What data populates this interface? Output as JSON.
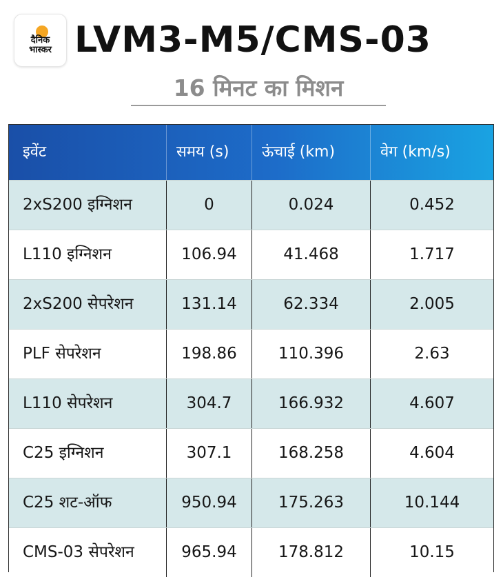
{
  "logo": {
    "line1": "दैनिक",
    "line2": "भास्कर"
  },
  "title": "LVM3-M5/CMS-03",
  "subtitle": "16 मिनट का मिशन",
  "table": {
    "headers": [
      "इवेंट",
      "समय (s)",
      "ऊंचाई (km)",
      "वेग (km/s)"
    ],
    "rows": [
      [
        "2xS200 इग्निशन",
        "0",
        "0.024",
        "0.452"
      ],
      [
        "L110 इग्निशन",
        "106.94",
        "41.468",
        "1.717"
      ],
      [
        "2xS200 सेपरेशन",
        "131.14",
        "62.334",
        "2.005"
      ],
      [
        "PLF सेपरेशन",
        "198.86",
        "110.396",
        "2.63"
      ],
      [
        "L110 सेपरेशन",
        "304.7",
        "166.932",
        "4.607"
      ],
      [
        "C25 इग्निशन",
        "307.1",
        "168.258",
        "4.604"
      ],
      [
        "C25 शट-ऑफ",
        "950.94",
        "175.263",
        "10.144"
      ],
      [
        "CMS-03 सेपरेशन",
        "965.94",
        "178.812",
        "10.15"
      ]
    ]
  },
  "colors": {
    "header_start": "#1a4fa8",
    "header_end": "#1aa3e2",
    "row_shade": "#d5e8ea",
    "logo_sun": "#f5a623",
    "subtitle": "#8c8c8c"
  }
}
